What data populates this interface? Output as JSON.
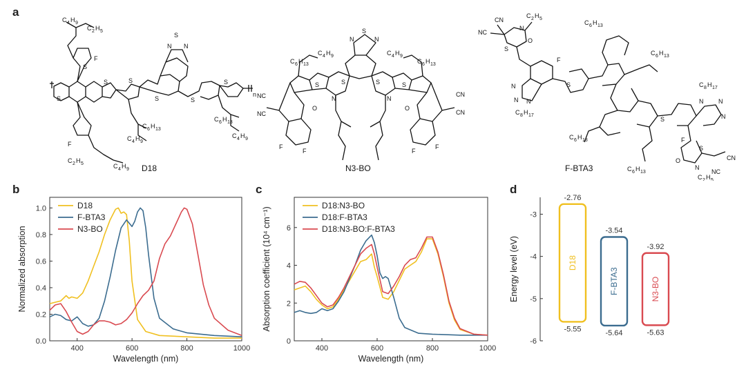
{
  "panels": {
    "a": "a",
    "b": "b",
    "c": "c",
    "d": "d"
  },
  "molecules": {
    "d18": {
      "name": "D18",
      "labels": [
        "C4H9",
        "C2H5",
        "F",
        "S",
        "N",
        "S",
        "N",
        "S",
        "S",
        "S",
        "S",
        "S",
        "n",
        "F",
        "C6H13",
        "C4H9",
        "C6H13",
        "C4H9",
        "C2H5",
        "C4H9"
      ]
    },
    "n3bo": {
      "name": "N3-BO",
      "labels": [
        "N",
        "S",
        "N",
        "C6H13",
        "C4H9",
        "C4H9",
        "C6H13",
        "S",
        "S",
        "S",
        "S",
        "N",
        "N",
        "NC",
        "NC",
        "O",
        "O",
        "CN",
        "CN",
        "F",
        "F",
        "F",
        "F"
      ]
    },
    "fbta3": {
      "name": "F-BTA3",
      "labels": [
        "CN",
        "NC",
        "N",
        "C2H5",
        "S",
        "O",
        "F",
        "C6H13",
        "C6H13",
        "N",
        "N",
        "N",
        "C8H17",
        "S",
        "S",
        "C8H17",
        "N",
        "N",
        "N",
        "C6H13",
        "C6H13",
        "F",
        "O",
        "S",
        "N",
        "C2H5",
        "CN",
        "NC"
      ]
    }
  },
  "chart_data": [
    {
      "type": "line",
      "panel": "b",
      "xlabel": "Wavelength (nm)",
      "ylabel": "Normalized absorption",
      "xlim": [
        300,
        1000
      ],
      "ylim": [
        0,
        1.08
      ],
      "xticks": [
        400,
        600,
        800,
        1000
      ],
      "yticks": [
        0.0,
        0.2,
        0.4,
        0.6,
        0.8,
        1.0
      ],
      "legend": "top-left",
      "series": [
        {
          "name": "D18",
          "color": "#f0c020",
          "x": [
            300,
            320,
            340,
            360,
            370,
            380,
            400,
            420,
            440,
            460,
            480,
            500,
            520,
            540,
            550,
            560,
            570,
            580,
            590,
            600,
            620,
            650,
            700,
            800,
            900,
            1000
          ],
          "y": [
            0.28,
            0.29,
            0.3,
            0.34,
            0.32,
            0.33,
            0.32,
            0.36,
            0.45,
            0.56,
            0.67,
            0.8,
            0.91,
            0.99,
            1.0,
            0.96,
            0.97,
            0.95,
            0.75,
            0.45,
            0.16,
            0.07,
            0.04,
            0.03,
            0.02,
            0.02
          ]
        },
        {
          "name": "F-BTA3",
          "color": "#3b6c8f",
          "x": [
            300,
            320,
            340,
            360,
            380,
            400,
            420,
            440,
            460,
            480,
            500,
            520,
            540,
            560,
            580,
            600,
            610,
            620,
            630,
            640,
            650,
            660,
            680,
            700,
            750,
            800,
            900,
            1000
          ],
          "y": [
            0.18,
            0.2,
            0.19,
            0.16,
            0.15,
            0.18,
            0.13,
            0.11,
            0.12,
            0.17,
            0.3,
            0.48,
            0.68,
            0.85,
            0.91,
            0.86,
            0.9,
            0.97,
            1.0,
            0.98,
            0.85,
            0.65,
            0.32,
            0.17,
            0.09,
            0.06,
            0.04,
            0.03
          ]
        },
        {
          "name": "N3-BO",
          "color": "#d94a50",
          "x": [
            300,
            320,
            340,
            360,
            380,
            400,
            420,
            440,
            460,
            480,
            500,
            520,
            540,
            560,
            580,
            600,
            620,
            640,
            660,
            680,
            700,
            720,
            740,
            760,
            780,
            790,
            800,
            820,
            840,
            860,
            880,
            900,
            950,
            1000
          ],
          "y": [
            0.23,
            0.27,
            0.28,
            0.22,
            0.14,
            0.07,
            0.05,
            0.07,
            0.12,
            0.15,
            0.15,
            0.14,
            0.12,
            0.13,
            0.16,
            0.21,
            0.28,
            0.34,
            0.38,
            0.45,
            0.62,
            0.73,
            0.79,
            0.88,
            0.97,
            1.0,
            0.99,
            0.88,
            0.65,
            0.42,
            0.27,
            0.17,
            0.08,
            0.04
          ]
        }
      ]
    },
    {
      "type": "line",
      "panel": "c",
      "xlabel": "Wavelength (nm)",
      "ylabel": "Absorption coefficient (10⁴ cm⁻¹)",
      "xlim": [
        300,
        1000
      ],
      "ylim": [
        0,
        7.6
      ],
      "xticks": [
        400,
        600,
        800,
        1000
      ],
      "yticks": [
        0,
        2,
        4,
        6
      ],
      "legend": "top-left",
      "series": [
        {
          "name": "D18:N3-BO",
          "color": "#f0c020",
          "x": [
            300,
            320,
            340,
            360,
            380,
            400,
            420,
            440,
            460,
            480,
            500,
            520,
            540,
            560,
            580,
            590,
            600,
            620,
            640,
            660,
            680,
            700,
            720,
            740,
            760,
            780,
            800,
            820,
            840,
            860,
            880,
            900,
            950,
            1000
          ],
          "y": [
            2.7,
            2.8,
            2.9,
            2.6,
            2.2,
            1.9,
            1.7,
            1.8,
            2.2,
            2.7,
            3.2,
            3.7,
            4.2,
            4.3,
            4.6,
            3.9,
            3.4,
            2.3,
            2.2,
            2.6,
            3.2,
            3.8,
            4.0,
            4.2,
            4.7,
            5.4,
            5.4,
            4.6,
            3.4,
            2.0,
            1.1,
            0.6,
            0.35,
            0.3
          ]
        },
        {
          "name": "D18:F-BTA3",
          "color": "#3b6c8f",
          "x": [
            300,
            320,
            340,
            360,
            380,
            400,
            420,
            440,
            460,
            480,
            500,
            520,
            540,
            560,
            580,
            590,
            600,
            610,
            620,
            630,
            640,
            660,
            680,
            700,
            750,
            800,
            900,
            1000
          ],
          "y": [
            1.5,
            1.6,
            1.5,
            1.45,
            1.5,
            1.7,
            1.6,
            1.7,
            2.1,
            2.6,
            3.3,
            4.0,
            4.8,
            5.3,
            5.6,
            5.2,
            4.5,
            3.6,
            3.3,
            3.4,
            3.3,
            2.3,
            1.2,
            0.7,
            0.4,
            0.35,
            0.3,
            0.3
          ]
        },
        {
          "name": "D18:N3-BO:F-BTA3",
          "color": "#d94a50",
          "x": [
            300,
            320,
            340,
            360,
            380,
            400,
            420,
            440,
            460,
            480,
            500,
            520,
            540,
            560,
            580,
            590,
            600,
            620,
            640,
            660,
            680,
            700,
            720,
            740,
            760,
            780,
            800,
            820,
            840,
            860,
            880,
            900,
            950,
            1000
          ],
          "y": [
            3.0,
            3.15,
            3.1,
            2.8,
            2.4,
            2.0,
            1.8,
            1.9,
            2.3,
            2.8,
            3.4,
            4.0,
            4.6,
            4.9,
            5.1,
            4.6,
            3.9,
            2.6,
            2.5,
            2.9,
            3.4,
            4.0,
            4.3,
            4.4,
            4.9,
            5.5,
            5.5,
            4.7,
            3.5,
            2.1,
            1.2,
            0.65,
            0.35,
            0.3
          ]
        }
      ]
    },
    {
      "type": "bar",
      "panel": "d",
      "ylabel": "Energy level (eV)",
      "ylim": [
        -6,
        -2.6
      ],
      "yticks": [
        -6,
        -5,
        -4,
        -3
      ],
      "bars": [
        {
          "name": "D18",
          "color": "#f0c020",
          "lumo": -2.76,
          "homo": -5.55,
          "lumo_label": "-2.76",
          "homo_label": "-5.55"
        },
        {
          "name": "F-BTA3",
          "color": "#3b6c8f",
          "lumo": -3.54,
          "homo": -5.64,
          "lumo_label": "-3.54",
          "homo_label": "-5.64"
        },
        {
          "name": "N3-BO",
          "color": "#d94a50",
          "lumo": -3.92,
          "homo": -5.63,
          "lumo_label": "-3.92",
          "homo_label": "-5.63"
        }
      ]
    }
  ]
}
